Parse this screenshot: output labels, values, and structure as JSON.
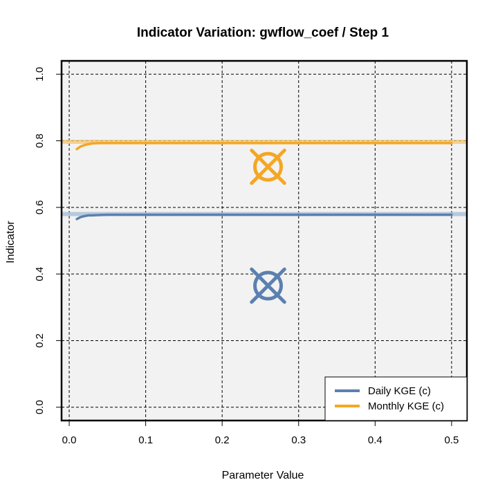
{
  "chart_data": {
    "type": "line",
    "title": "Indicator Variation: gwflow_coef / Step 1",
    "xlabel": "Parameter Value",
    "ylabel": "Indicator",
    "xlim": [
      -0.01,
      0.52
    ],
    "ylim": [
      -0.04,
      1.04
    ],
    "xticks": [
      0.0,
      0.1,
      0.2,
      0.3,
      0.4,
      0.5
    ],
    "xtick_labels": [
      "0.0",
      "0.1",
      "0.2",
      "0.3",
      "0.4",
      "0.5"
    ],
    "yticks": [
      0.0,
      0.2,
      0.4,
      0.6,
      0.8,
      1.0
    ],
    "ytick_labels": [
      "0.0",
      "0.2",
      "0.4",
      "0.6",
      "0.8",
      "1.0"
    ],
    "grid": true,
    "legend_position": "bottom-right",
    "series": [
      {
        "name": "Daily KGE (c)",
        "color": "#5b80b0",
        "x": [
          0.01,
          0.015,
          0.02,
          0.025,
          0.03,
          0.04,
          0.05,
          0.1,
          0.2,
          0.3,
          0.4,
          0.5
        ],
        "y": [
          0.565,
          0.571,
          0.574,
          0.576,
          0.576,
          0.577,
          0.578,
          0.578,
          0.578,
          0.578,
          0.578,
          0.578
        ],
        "reference_y": 0.58,
        "reference_color": "#a8c0d8",
        "marker": {
          "x": 0.26,
          "y": 0.365
        }
      },
      {
        "name": "Monthly KGE (c)",
        "color": "#f5a623",
        "x": [
          0.01,
          0.015,
          0.02,
          0.025,
          0.03,
          0.04,
          0.05,
          0.1,
          0.2,
          0.3,
          0.4,
          0.5
        ],
        "y": [
          0.775,
          0.783,
          0.787,
          0.79,
          0.792,
          0.793,
          0.793,
          0.793,
          0.793,
          0.793,
          0.793,
          0.793
        ],
        "reference_y": 0.797,
        "reference_color": "#f5c878",
        "marker": {
          "x": 0.26,
          "y": 0.722
        }
      }
    ]
  }
}
